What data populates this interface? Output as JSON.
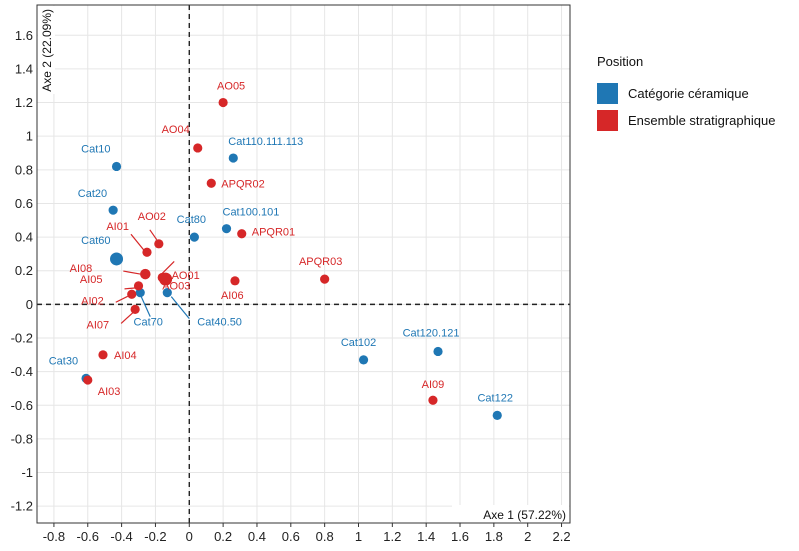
{
  "chart_data": {
    "type": "scatter",
    "xlabel": "Axe 1 (57.22%)",
    "ylabel": "Axe 2 (22.09%)",
    "xlim": [
      -0.9,
      2.25
    ],
    "ylim": [
      -1.3,
      1.78
    ],
    "xticks": [
      -0.8,
      -0.6,
      -0.4,
      -0.2,
      0,
      0.2,
      0.4,
      0.6,
      0.8,
      1,
      1.2,
      1.4,
      1.6,
      1.8,
      2,
      2.2
    ],
    "xtick_labels": [
      "-0.8",
      "-0.6",
      "-0.4",
      "-0.2",
      "0",
      "0.2",
      "0.4",
      "0.6",
      "0.8",
      "1",
      "1.2",
      "1.4",
      "1.6",
      "1.8",
      "2",
      "2.2"
    ],
    "yticks": [
      -1.2,
      -1,
      -0.8,
      -0.6,
      -0.4,
      -0.2,
      0,
      0.2,
      0.4,
      0.6,
      0.8,
      1,
      1.2,
      1.4,
      1.6
    ],
    "ytick_labels": [
      "-1.2",
      "-1",
      "-0.8",
      "-0.6",
      "-0.4",
      "-0.2",
      "0",
      "0.2",
      "0.4",
      "0.6",
      "0.8",
      "1",
      "1.2",
      "1.4",
      "1.6"
    ],
    "grid": true,
    "reference_lines": {
      "x": 0,
      "y": 0,
      "style": "dashed"
    },
    "legend": {
      "title": "Position",
      "placement": "right",
      "entries": [
        {
          "name": "Catégorie céramique",
          "color": "#1f77b4"
        },
        {
          "name": "Ensemble stratigraphique",
          "color": "#d62728"
        }
      ]
    },
    "series": [
      {
        "name": "Catégorie céramique",
        "color": "#1f77b4",
        "points": [
          {
            "label": "Cat10",
            "x": -0.43,
            "y": 0.82,
            "size": 1
          },
          {
            "label": "Cat110.111.113",
            "x": 0.26,
            "y": 0.87,
            "size": 1
          },
          {
            "label": "Cat20",
            "x": -0.45,
            "y": 0.56,
            "size": 1
          },
          {
            "label": "Cat80",
            "x": 0.03,
            "y": 0.4,
            "size": 1
          },
          {
            "label": "Cat100.101",
            "x": 0.22,
            "y": 0.45,
            "size": 1
          },
          {
            "label": "Cat60",
            "x": -0.43,
            "y": 0.27,
            "size": 2
          },
          {
            "label": "Cat70",
            "x": -0.29,
            "y": 0.07,
            "size": 1
          },
          {
            "label": "Cat40.50",
            "x": -0.13,
            "y": 0.07,
            "size": 1
          },
          {
            "label": "Cat102",
            "x": 1.03,
            "y": -0.33,
            "size": 1
          },
          {
            "label": "Cat120.121",
            "x": 1.47,
            "y": -0.28,
            "size": 1
          },
          {
            "label": "Cat30",
            "x": -0.61,
            "y": -0.44,
            "size": 1
          },
          {
            "label": "Cat122",
            "x": 1.82,
            "y": -0.66,
            "size": 1
          }
        ]
      },
      {
        "name": "Ensemble stratigraphique",
        "color": "#d62728",
        "points": [
          {
            "label": "AO05",
            "x": 0.2,
            "y": 1.2,
            "size": 1
          },
          {
            "label": "AO04",
            "x": 0.05,
            "y": 0.93,
            "size": 1
          },
          {
            "label": "APQR02",
            "x": 0.13,
            "y": 0.72,
            "size": 1
          },
          {
            "label": "AO02",
            "x": -0.18,
            "y": 0.36,
            "size": 1
          },
          {
            "label": "AI01",
            "x": -0.25,
            "y": 0.31,
            "size": 1
          },
          {
            "label": "APQR01",
            "x": 0.31,
            "y": 0.42,
            "size": 1
          },
          {
            "label": "AO03",
            "x": -0.16,
            "y": 0.16,
            "size": 1
          },
          {
            "label": "AI08",
            "x": -0.26,
            "y": 0.18,
            "size": 1.3
          },
          {
            "label": "AO01",
            "x": -0.14,
            "y": 0.15,
            "size": 2
          },
          {
            "label": "AI05",
            "x": -0.3,
            "y": 0.11,
            "size": 1
          },
          {
            "label": "AI02",
            "x": -0.34,
            "y": 0.06,
            "size": 1
          },
          {
            "label": "AI07",
            "x": -0.32,
            "y": -0.03,
            "size": 1
          },
          {
            "label": "AI06",
            "x": 0.27,
            "y": 0.14,
            "size": 1
          },
          {
            "label": "APQR03",
            "x": 0.8,
            "y": 0.15,
            "size": 1
          },
          {
            "label": "AI04",
            "x": -0.51,
            "y": -0.3,
            "size": 1
          },
          {
            "label": "AI03",
            "x": -0.6,
            "y": -0.45,
            "size": 1
          },
          {
            "label": "AI09",
            "x": 1.44,
            "y": -0.57,
            "size": 1
          }
        ]
      }
    ]
  }
}
